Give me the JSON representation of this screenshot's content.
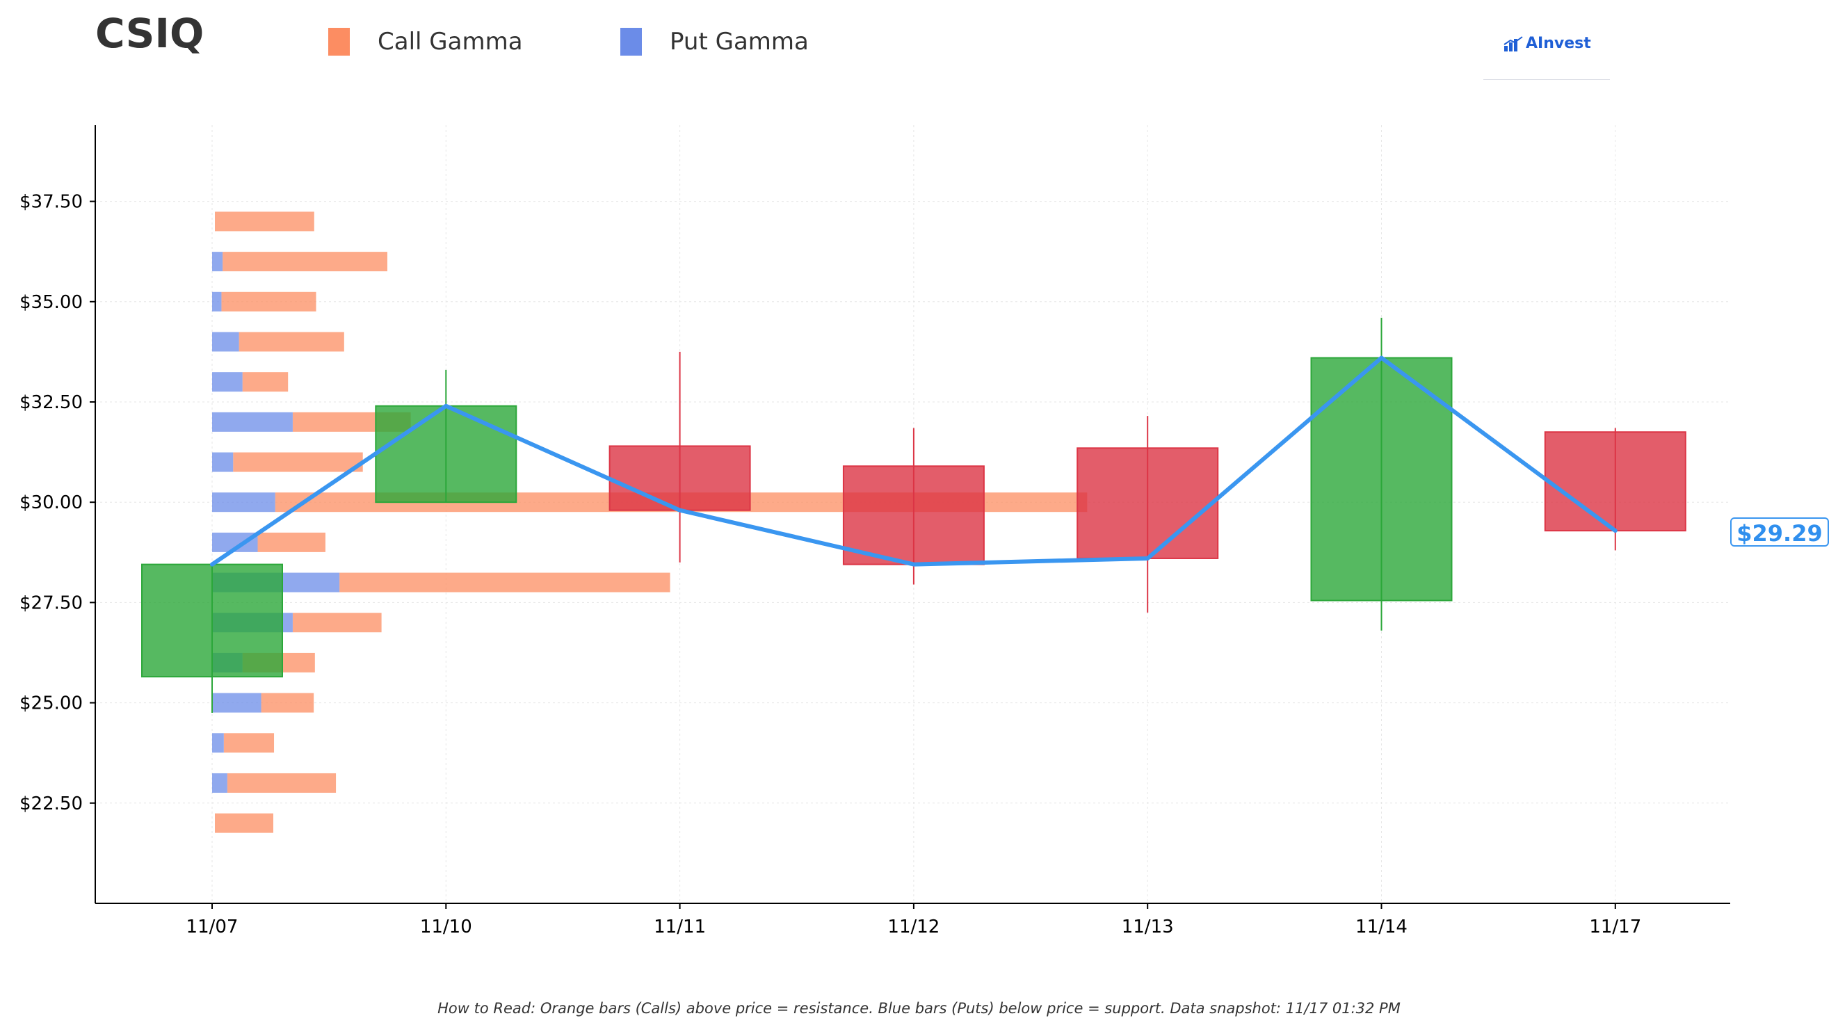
{
  "header": {
    "ticker": "CSIQ",
    "legend": [
      {
        "label": "Call Gamma",
        "color": "#fc8d62"
      },
      {
        "label": "Put Gamma",
        "color": "#6b8ce8"
      }
    ],
    "brand": "AInvest"
  },
  "current_price_label": "$29.29",
  "footnote": "How to Read: Orange bars (Calls) above price = resistance. Blue bars (Puts) below price = support. Data snapshot: 11/17 01:32 PM",
  "colors": {
    "up": "#2ca73a",
    "down": "#dc3545",
    "call": "#fc8d62",
    "put": "#6b8ce8",
    "price_line": "#3a96f0",
    "axis": "#000000",
    "grid": "#e6e6e6"
  },
  "chart_data": [
    {
      "type": "candlestick",
      "categories": [
        "11/07",
        "11/10",
        "11/11",
        "11/12",
        "11/13",
        "11/14",
        "11/17"
      ],
      "ylim": [
        20.0,
        39.4
      ],
      "yticks": [
        22.5,
        25.0,
        27.5,
        30.0,
        32.5,
        35.0,
        37.5
      ],
      "ytick_labels": [
        "$22.50",
        "$25.00",
        "$27.50",
        "$30.00",
        "$32.50",
        "$35.00",
        "$37.50"
      ],
      "grid": true,
      "legend": "top-left",
      "candles": [
        {
          "date": "11/07",
          "open": 25.65,
          "high": 28.5,
          "low": 24.75,
          "close": 28.45
        },
        {
          "date": "11/10",
          "open": 30.0,
          "high": 33.3,
          "low": 30.0,
          "close": 32.4
        },
        {
          "date": "11/11",
          "open": 31.4,
          "high": 33.75,
          "low": 28.5,
          "close": 29.8
        },
        {
          "date": "11/12",
          "open": 30.9,
          "high": 31.85,
          "low": 27.95,
          "close": 28.45
        },
        {
          "date": "11/13",
          "open": 31.35,
          "high": 32.15,
          "low": 27.25,
          "close": 28.6
        },
        {
          "date": "11/14",
          "open": 27.55,
          "high": 34.6,
          "low": 26.8,
          "close": 33.6
        },
        {
          "date": "11/17",
          "open": 31.75,
          "high": 31.85,
          "low": 28.8,
          "close": 29.29
        }
      ]
    },
    {
      "type": "bar",
      "orientation": "horizontal",
      "categories": [
        "22",
        "23",
        "24",
        "25",
        "26",
        "27",
        "28",
        "29",
        "30",
        "31",
        "32",
        "33",
        "34",
        "35",
        "36",
        "37"
      ],
      "series": [
        {
          "name": "Call Gamma",
          "values": [
            0.5,
            0.93,
            0.43,
            0.45,
            0.62,
            0.76,
            2.83,
            0.58,
            6.95,
            1.11,
            1.01,
            0.39,
            0.9,
            0.81,
            1.41,
            0.85
          ]
        },
        {
          "name": "Put Gamma",
          "values": [
            0.0,
            0.13,
            0.1,
            0.42,
            0.26,
            0.69,
            1.09,
            0.39,
            0.54,
            0.18,
            0.69,
            0.26,
            0.23,
            0.08,
            0.09,
            0.0
          ]
        }
      ]
    }
  ]
}
